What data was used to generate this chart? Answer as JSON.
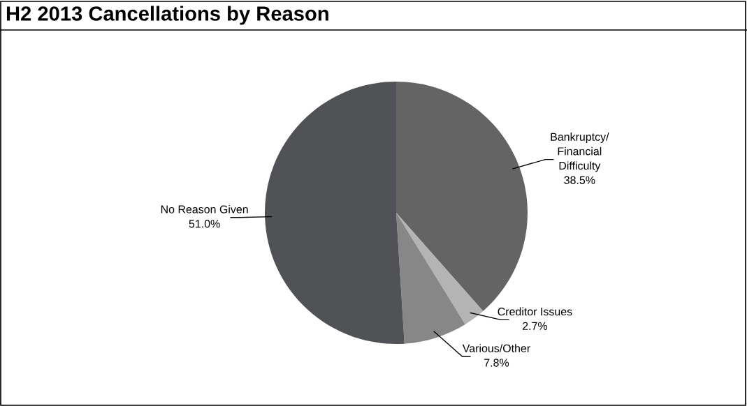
{
  "chart_data": {
    "type": "pie",
    "title": "H2 2013 Cancellations by Reason",
    "categories": [
      "Bankruptcy/\nFinancial\nDifficulty",
      "Creditor Issues",
      "Various/Other",
      "No Reason Given"
    ],
    "values": [
      38.5,
      2.7,
      7.8,
      51.0
    ],
    "value_labels": [
      "38.5%",
      "2.7%",
      "7.8%",
      "51.0%"
    ],
    "colors": [
      "#646464",
      "#b4b4b4",
      "#878787",
      "#515256"
    ],
    "legend": false
  }
}
